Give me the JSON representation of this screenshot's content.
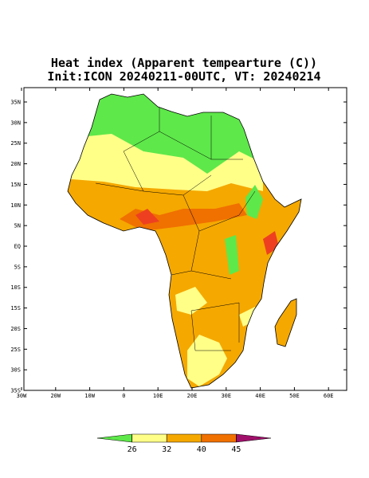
{
  "title": [
    "Heat index (Apparent tempearture (C))",
    "Init:ICON 20240211-00UTC, VT: 20240214"
  ],
  "map": {
    "lat_ticks": [
      "35N",
      "30N",
      "25N",
      "20N",
      "15N",
      "10N",
      "5N",
      "EQ",
      "5S",
      "10S",
      "15S",
      "20S",
      "25S",
      "30S",
      "35S"
    ],
    "lon_ticks": [
      "30W",
      "20W",
      "10W",
      "0",
      "10E",
      "20E",
      "30E",
      "40E",
      "50E",
      "60E"
    ]
  },
  "colorbar": {
    "levels": [
      26,
      32,
      40,
      45
    ],
    "colors": [
      "#5ee84a",
      "#ffff88",
      "#f5a800",
      "#f07000",
      "#a0106a"
    ]
  }
}
